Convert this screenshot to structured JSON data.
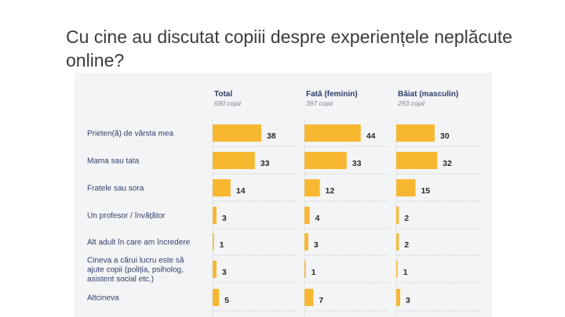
{
  "slide": {
    "title": "Cu cine au discutat copiii despre experiențele neplăcute online?"
  },
  "chart_data": {
    "type": "bar",
    "orientation": "horizontal",
    "title": "Cu cine au discutat copiii despre experiențele neplăcute online?",
    "bar_color": "#f7b731",
    "categories": [
      [
        "Prieten(ă) de vârsta mea"
      ],
      [
        "Mama sau tata"
      ],
      [
        "Fratele sau sora"
      ],
      [
        "Un profesor / învățător"
      ],
      [
        "Alt adult în care am încredere"
      ],
      [
        "Cineva a cărui lucru este să",
        "ajute copii (poliția, psiholog,",
        "asistent social etc.)"
      ],
      [
        "Altcineva"
      ]
    ],
    "series": [
      {
        "name": "Total",
        "subtitle": "690 copii",
        "values": [
          38,
          33,
          14,
          3,
          1,
          3,
          5
        ]
      },
      {
        "name": "Fată (feminin)",
        "subtitle": "397 copii",
        "values": [
          44,
          33,
          12,
          4,
          3,
          1,
          7
        ]
      },
      {
        "name": "Băiat (masculin)",
        "subtitle": "293 copii",
        "values": [
          30,
          32,
          15,
          2,
          2,
          1,
          3
        ]
      }
    ],
    "xlim": [
      0,
      50
    ]
  }
}
